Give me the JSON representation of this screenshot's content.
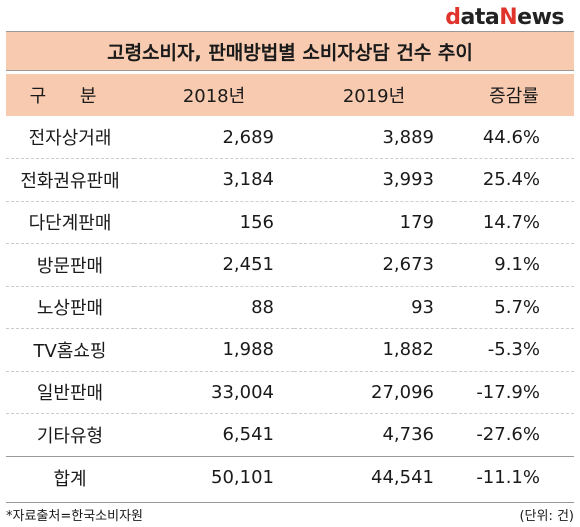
{
  "logo": {
    "d": "d",
    "ata": "ata",
    "n": "N",
    "ews": "ews"
  },
  "title": "고령소비자, 판매방법별 소비자상담 건수 추이",
  "table": {
    "headers": [
      "구 분",
      "2018년",
      "2019년",
      "증감률"
    ],
    "rows": [
      {
        "category": "전자상거래",
        "y2018": "2,689",
        "y2019": "3,889",
        "rate": "44.6%"
      },
      {
        "category": "전화권유판매",
        "y2018": "3,184",
        "y2019": "3,993",
        "rate": "25.4%"
      },
      {
        "category": "다단계판매",
        "y2018": "156",
        "y2019": "179",
        "rate": "14.7%"
      },
      {
        "category": "방문판매",
        "y2018": "2,451",
        "y2019": "2,673",
        "rate": "9.1%"
      },
      {
        "category": "노상판매",
        "y2018": "88",
        "y2019": "93",
        "rate": "5.7%"
      },
      {
        "category": "TV홈쇼핑",
        "y2018": "1,988",
        "y2019": "1,882",
        "rate": "-5.3%"
      },
      {
        "category": "일반판매",
        "y2018": "33,004",
        "y2019": "27,096",
        "rate": "-17.9%"
      },
      {
        "category": "기타유형",
        "y2018": "6,541",
        "y2019": "4,736",
        "rate": "-27.6%"
      }
    ],
    "total": {
      "category": "합계",
      "y2018": "50,101",
      "y2019": "44,541",
      "rate": "-11.1%"
    }
  },
  "footer": {
    "source": "*자료출처=한국소비자원",
    "unit": "(단위: 건)"
  }
}
